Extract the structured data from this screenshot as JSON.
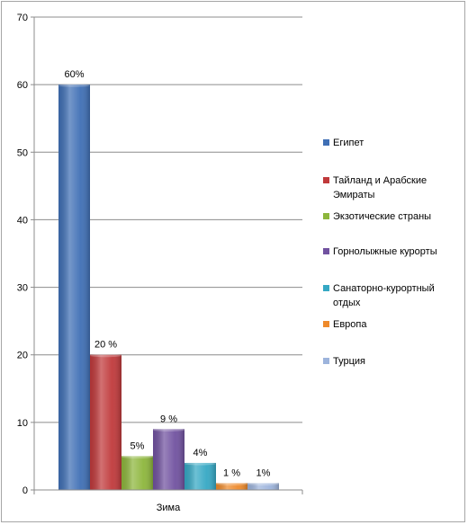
{
  "chart_data": {
    "type": "bar",
    "categories": [
      "Зима"
    ],
    "ylim": [
      0,
      70
    ],
    "yticks": [
      0,
      10,
      20,
      30,
      40,
      50,
      60,
      70
    ],
    "grid": true,
    "legend_position": "right",
    "series": [
      {
        "name": "Египет",
        "values": [
          60
        ],
        "label": "60%",
        "color": "#3f6fb5"
      },
      {
        "name": "Тайланд и Арабские Эмираты",
        "values": [
          20
        ],
        "label": "20 %",
        "color": "#c0393b"
      },
      {
        "name": "Экзотические страны",
        "values": [
          5
        ],
        "label": "5%",
        "color": "#8db63c"
      },
      {
        "name": "Горнолыжные курорты",
        "values": [
          9
        ],
        "label": "9 %",
        "color": "#7152a0"
      },
      {
        "name": "Санаторно-курортный отдых",
        "values": [
          4
        ],
        "label": "4%",
        "color": "#35a8c4"
      },
      {
        "name": "Европа",
        "values": [
          1
        ],
        "label": "1 %",
        "color": "#ee8a2b"
      },
      {
        "name": "Турция",
        "values": [
          1
        ],
        "label": "1%",
        "color": "#9db4dc"
      }
    ]
  }
}
